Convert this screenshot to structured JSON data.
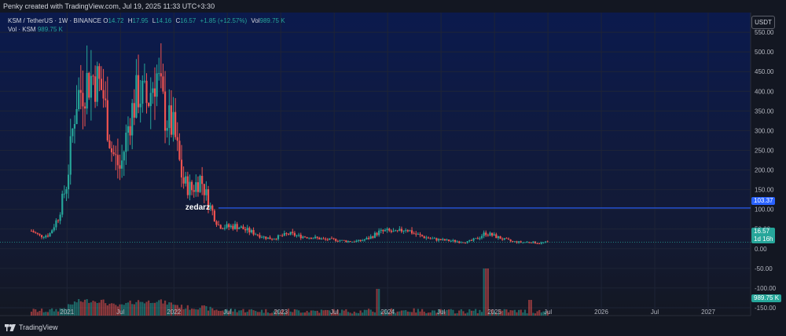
{
  "header": {
    "text": "Penky created with TradingView.com, Jul 19, 2025 11:33 UTC+3:30"
  },
  "legend": {
    "symbol": "KSM / TetherUS · 1W · BINANCE",
    "o_label": "O",
    "o": "14.72",
    "h_label": "H",
    "h": "17.95",
    "l_label": "L",
    "l": "14.16",
    "c_label": "C",
    "c": "16.57",
    "change": "+1.85 (+12.57%)",
    "vol_label": "Vol",
    "vol": "989.75 K",
    "vol_row_label": "Vol · KSM",
    "vol_row_value": "989.75 K"
  },
  "currency_button": "USDT",
  "annotation": "zedarz",
  "branding": "TradingView",
  "colors": {
    "up": "#26a69a",
    "down": "#ef5350",
    "line": "#2962ff",
    "bg_top": "#0b1a4d",
    "bg_bottom": "#131722"
  },
  "chart_data": {
    "type": "candlestick",
    "symbol": "KSM/USDT",
    "interval": "1W",
    "x_range": [
      "2020-09",
      "2027-04"
    ],
    "x_ticks": [
      "2021",
      "Jul",
      "2022",
      "Jul",
      "2023",
      "Jul",
      "2024",
      "Jul",
      "2025",
      "Jul",
      "2026",
      "Jul",
      "2027"
    ],
    "y_ticks": [
      550,
      500,
      450,
      400,
      350,
      300,
      250,
      200,
      150,
      100,
      50,
      0,
      -50,
      -100,
      -150
    ],
    "y_tick_labels": [
      "550.00",
      "500.00",
      "450.00",
      "400.00",
      "350.00",
      "300.00",
      "250.00",
      "200.00",
      "150.00",
      "100.00",
      "50.00",
      "0.00",
      "-50.00",
      "-100.00",
      "-150.00"
    ],
    "ylim": [
      -170,
      600
    ],
    "horizontal_line": {
      "value": 103.37,
      "label": "103.37",
      "from": "2022-06"
    },
    "last_price": {
      "value": 16.57,
      "label": "16.57",
      "countdown": "1d 16h"
    },
    "volume_last_label": "989.75 K",
    "monthly_close": [
      {
        "t": "2020-09",
        "v": 45
      },
      {
        "t": "2020-10",
        "v": 32
      },
      {
        "t": "2020-11",
        "v": 35
      },
      {
        "t": "2020-12",
        "v": 80
      },
      {
        "t": "2021-01",
        "v": 170
      },
      {
        "t": "2021-02",
        "v": 380
      },
      {
        "t": "2021-03",
        "v": 420
      },
      {
        "t": "2021-04",
        "v": 440
      },
      {
        "t": "2021-05",
        "v": 400
      },
      {
        "t": "2021-06",
        "v": 250
      },
      {
        "t": "2021-07",
        "v": 200
      },
      {
        "t": "2021-08",
        "v": 330
      },
      {
        "t": "2021-09",
        "v": 400
      },
      {
        "t": "2021-10",
        "v": 370
      },
      {
        "t": "2021-11",
        "v": 450
      },
      {
        "t": "2021-12",
        "v": 340
      },
      {
        "t": "2022-01",
        "v": 300
      },
      {
        "t": "2022-02",
        "v": 170
      },
      {
        "t": "2022-03",
        "v": 150
      },
      {
        "t": "2022-04",
        "v": 180
      },
      {
        "t": "2022-05",
        "v": 110
      },
      {
        "t": "2022-06",
        "v": 60
      },
      {
        "t": "2022-07",
        "v": 55
      },
      {
        "t": "2022-08",
        "v": 58
      },
      {
        "t": "2022-09",
        "v": 48
      },
      {
        "t": "2022-10",
        "v": 40
      },
      {
        "t": "2022-11",
        "v": 30
      },
      {
        "t": "2022-12",
        "v": 25
      },
      {
        "t": "2023-01",
        "v": 32
      },
      {
        "t": "2023-02",
        "v": 38
      },
      {
        "t": "2023-03",
        "v": 32
      },
      {
        "t": "2023-04",
        "v": 30
      },
      {
        "t": "2023-05",
        "v": 27
      },
      {
        "t": "2023-06",
        "v": 23
      },
      {
        "t": "2023-07",
        "v": 23
      },
      {
        "t": "2023-08",
        "v": 20
      },
      {
        "t": "2023-09",
        "v": 18
      },
      {
        "t": "2023-10",
        "v": 20
      },
      {
        "t": "2023-11",
        "v": 28
      },
      {
        "t": "2023-12",
        "v": 42
      },
      {
        "t": "2024-01",
        "v": 45
      },
      {
        "t": "2024-02",
        "v": 40
      },
      {
        "t": "2024-03",
        "v": 52
      },
      {
        "t": "2024-04",
        "v": 38
      },
      {
        "t": "2024-05",
        "v": 30
      },
      {
        "t": "2024-06",
        "v": 25
      },
      {
        "t": "2024-07",
        "v": 22
      },
      {
        "t": "2024-08",
        "v": 20
      },
      {
        "t": "2024-09",
        "v": 18
      },
      {
        "t": "2024-10",
        "v": 17
      },
      {
        "t": "2024-11",
        "v": 25
      },
      {
        "t": "2024-12",
        "v": 40
      },
      {
        "t": "2025-01",
        "v": 32
      },
      {
        "t": "2025-02",
        "v": 24
      },
      {
        "t": "2025-03",
        "v": 18
      },
      {
        "t": "2025-04",
        "v": 16
      },
      {
        "t": "2025-05",
        "v": 17
      },
      {
        "t": "2025-06",
        "v": 14
      },
      {
        "t": "2025-07",
        "v": 16.57
      }
    ]
  }
}
